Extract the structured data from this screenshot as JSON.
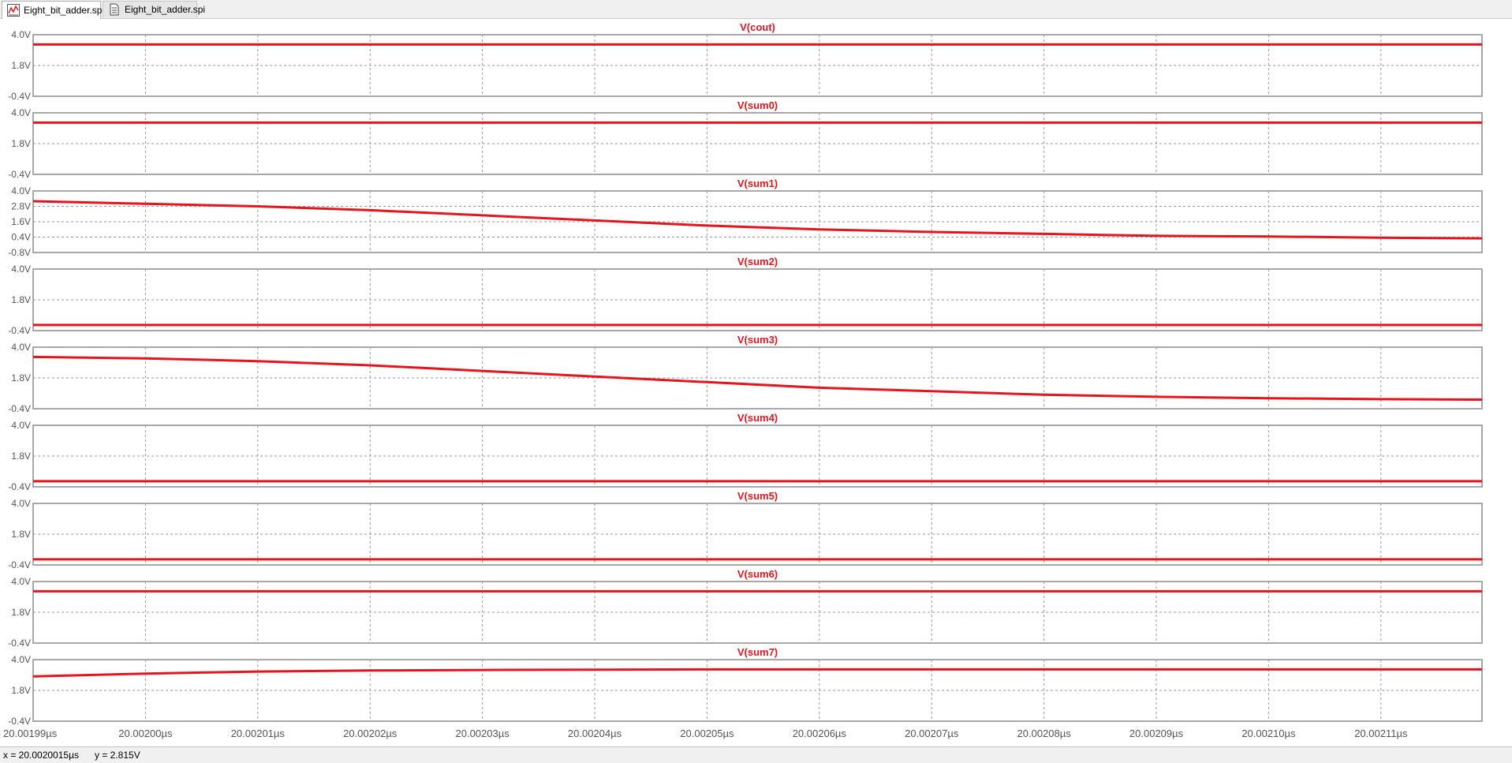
{
  "tabs": [
    {
      "label": "Eight_bit_adder.spi",
      "icon": "waveform-icon",
      "active": true
    },
    {
      "label": "Eight_bit_adder.spi",
      "icon": "netlist-document-icon",
      "active": false
    }
  ],
  "status": {
    "x_readout": "x = 20.0020015µs",
    "y_readout": "y = 2.815V"
  },
  "colors": {
    "trace": "#e8141c",
    "title": "#e8141c",
    "grid": "#9a9a9a",
    "border": "#a8a8a8"
  },
  "chart_data": {
    "type": "line",
    "x_unit": "µs",
    "xlim": [
      20.00199,
      20.002119
    ],
    "x_ticks": [
      "20.00199µs",
      "20.00200µs",
      "20.00201µs",
      "20.00202µs",
      "20.00203µs",
      "20.00204µs",
      "20.00205µs",
      "20.00206µs",
      "20.00207µs",
      "20.00208µs",
      "20.00209µs",
      "20.00210µs",
      "20.00211µs"
    ],
    "x_tick_values": [
      20.00199,
      20.002,
      20.00201,
      20.00202,
      20.00203,
      20.00204,
      20.00205,
      20.00206,
      20.00207,
      20.00208,
      20.00209,
      20.0021,
      20.00211
    ],
    "grid": true,
    "panels": [
      {
        "title": "V(cout)",
        "y_ticks": [
          "4.0V",
          "1.8V",
          "-0.4V"
        ],
        "y_tick_values": [
          4.0,
          1.8,
          -0.4
        ],
        "ylim": [
          -0.4,
          4.0
        ],
        "x": [
          20.00199,
          20.002119
        ],
        "y": [
          3.3,
          3.3
        ]
      },
      {
        "title": "V(sum0)",
        "y_ticks": [
          "4.0V",
          "1.8V",
          "-0.4V"
        ],
        "y_tick_values": [
          4.0,
          1.8,
          -0.4
        ],
        "ylim": [
          -0.4,
          4.0
        ],
        "x": [
          20.00199,
          20.002119
        ],
        "y": [
          3.3,
          3.3
        ]
      },
      {
        "title": "V(sum1)",
        "y_ticks": [
          "4.0V",
          "2.8V",
          "1.6V",
          "0.4V",
          "-0.8V"
        ],
        "y_tick_values": [
          4.0,
          2.8,
          1.6,
          0.4,
          -0.8
        ],
        "ylim": [
          -0.8,
          4.0
        ],
        "x": [
          20.00199,
          20.002,
          20.00201,
          20.00202,
          20.00203,
          20.00204,
          20.00205,
          20.00206,
          20.00207,
          20.00208,
          20.00209,
          20.0021,
          20.00211,
          20.002119
        ],
        "y": [
          3.2,
          3.0,
          2.8,
          2.5,
          2.1,
          1.7,
          1.3,
          1.0,
          0.8,
          0.65,
          0.5,
          0.45,
          0.35,
          0.3
        ]
      },
      {
        "title": "V(sum2)",
        "y_ticks": [
          "4.0V",
          "1.8V",
          "-0.4V"
        ],
        "y_tick_values": [
          4.0,
          1.8,
          -0.4
        ],
        "ylim": [
          -0.4,
          4.0
        ],
        "x": [
          20.00199,
          20.002119
        ],
        "y": [
          0.0,
          0.0
        ]
      },
      {
        "title": "V(sum3)",
        "y_ticks": [
          "4.0V",
          "1.8V",
          "-0.4V"
        ],
        "y_tick_values": [
          4.0,
          1.8,
          -0.4
        ],
        "ylim": [
          -0.4,
          4.0
        ],
        "x": [
          20.00199,
          20.002,
          20.00201,
          20.00202,
          20.00203,
          20.00204,
          20.00205,
          20.00206,
          20.00207,
          20.00208,
          20.00209,
          20.0021,
          20.00211,
          20.002119
        ],
        "y": [
          3.3,
          3.2,
          3.0,
          2.7,
          2.3,
          1.9,
          1.5,
          1.1,
          0.85,
          0.6,
          0.45,
          0.35,
          0.28,
          0.25
        ]
      },
      {
        "title": "V(sum4)",
        "y_ticks": [
          "4.0V",
          "1.8V",
          "-0.4V"
        ],
        "y_tick_values": [
          4.0,
          1.8,
          -0.4
        ],
        "ylim": [
          -0.4,
          4.0
        ],
        "x": [
          20.00199,
          20.002119
        ],
        "y": [
          0.0,
          0.0
        ]
      },
      {
        "title": "V(sum5)",
        "y_ticks": [
          "4.0V",
          "1.8V",
          "-0.4V"
        ],
        "y_tick_values": [
          4.0,
          1.8,
          -0.4
        ],
        "ylim": [
          -0.4,
          4.0
        ],
        "x": [
          20.00199,
          20.002119
        ],
        "y": [
          0.0,
          0.0
        ]
      },
      {
        "title": "V(sum6)",
        "y_ticks": [
          "4.0V",
          "1.8V",
          "-0.4V"
        ],
        "y_tick_values": [
          4.0,
          1.8,
          -0.4
        ],
        "ylim": [
          -0.4,
          4.0
        ],
        "x": [
          20.00199,
          20.002119
        ],
        "y": [
          3.3,
          3.3
        ]
      },
      {
        "title": "V(sum7)",
        "y_ticks": [
          "4.0V",
          "1.8V",
          "-0.4V"
        ],
        "y_tick_values": [
          4.0,
          1.8,
          -0.4
        ],
        "ylim": [
          -0.4,
          4.0
        ],
        "x": [
          20.00199,
          20.002,
          20.00201,
          20.00202,
          20.00203,
          20.00204,
          20.00205,
          20.00206,
          20.002119
        ],
        "y": [
          2.8,
          3.0,
          3.15,
          3.22,
          3.26,
          3.28,
          3.3,
          3.3,
          3.3
        ]
      }
    ]
  }
}
